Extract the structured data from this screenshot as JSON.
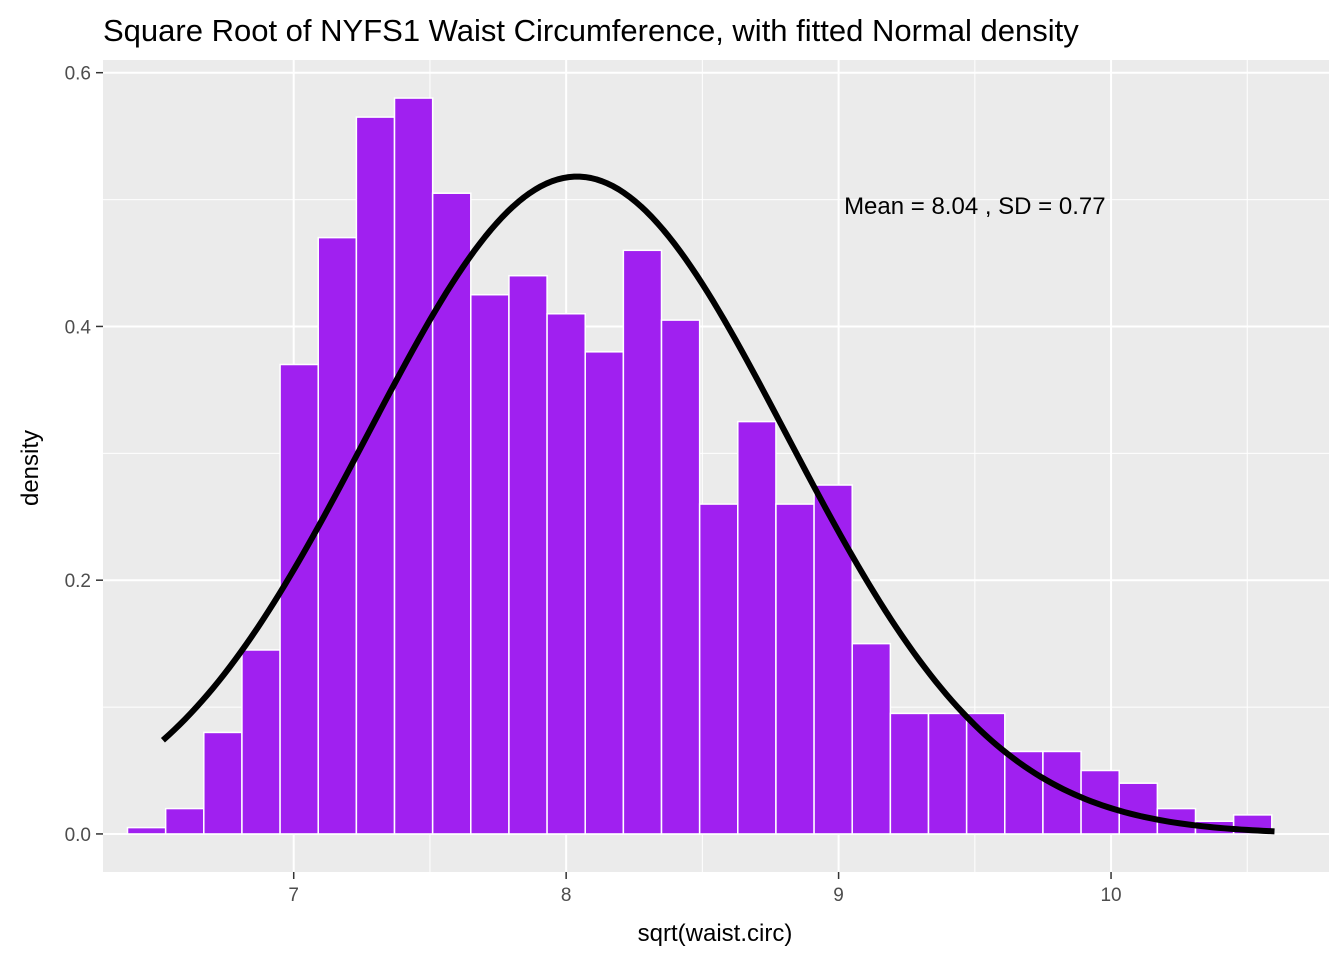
{
  "chart_data": {
    "type": "bar",
    "title": "Square Root of NYFS1 Waist Circumference, with fitted Normal density",
    "xlabel": "sqrt(waist.circ)",
    "ylabel": "density",
    "xlim": [
      6.3,
      10.8
    ],
    "ylim": [
      -0.03,
      0.61
    ],
    "x_ticks": [
      7,
      8,
      9,
      10
    ],
    "x_tick_labels": [
      "7",
      "8",
      "9",
      "10"
    ],
    "y_ticks": [
      0.0,
      0.2,
      0.4,
      0.6
    ],
    "y_tick_labels": [
      "0.0",
      "0.2",
      "0.4",
      "0.6"
    ],
    "grid": true,
    "bin_width": 0.14,
    "bin_centers": [
      6.46,
      6.6,
      6.74,
      6.88,
      7.02,
      7.16,
      7.3,
      7.44,
      7.58,
      7.72,
      7.86,
      8.0,
      8.14,
      8.28,
      8.42,
      8.56,
      8.7,
      8.84,
      8.98,
      9.12,
      9.26,
      9.4,
      9.54,
      9.68,
      9.82,
      9.96,
      10.1,
      10.24,
      10.38,
      10.52
    ],
    "values": [
      0.005,
      0.02,
      0.08,
      0.145,
      0.37,
      0.47,
      0.565,
      0.58,
      0.505,
      0.425,
      0.44,
      0.41,
      0.38,
      0.46,
      0.405,
      0.26,
      0.325,
      0.26,
      0.275,
      0.15,
      0.095,
      0.095,
      0.095,
      0.065,
      0.065,
      0.05,
      0.04,
      0.02,
      0.01,
      0.015
    ],
    "bar_color": "#A020F0",
    "bar_outline": "#ffffff",
    "panel_background": "#EBEBEB",
    "curve": {
      "name": "fitted Normal density",
      "mean": 8.04,
      "sd": 0.77,
      "x_range": [
        6.52,
        10.6
      ],
      "color": "#000000"
    },
    "annotation": {
      "text": "Mean =  8.04 , SD =  0.77",
      "x": 9.5,
      "y": 0.495
    }
  }
}
